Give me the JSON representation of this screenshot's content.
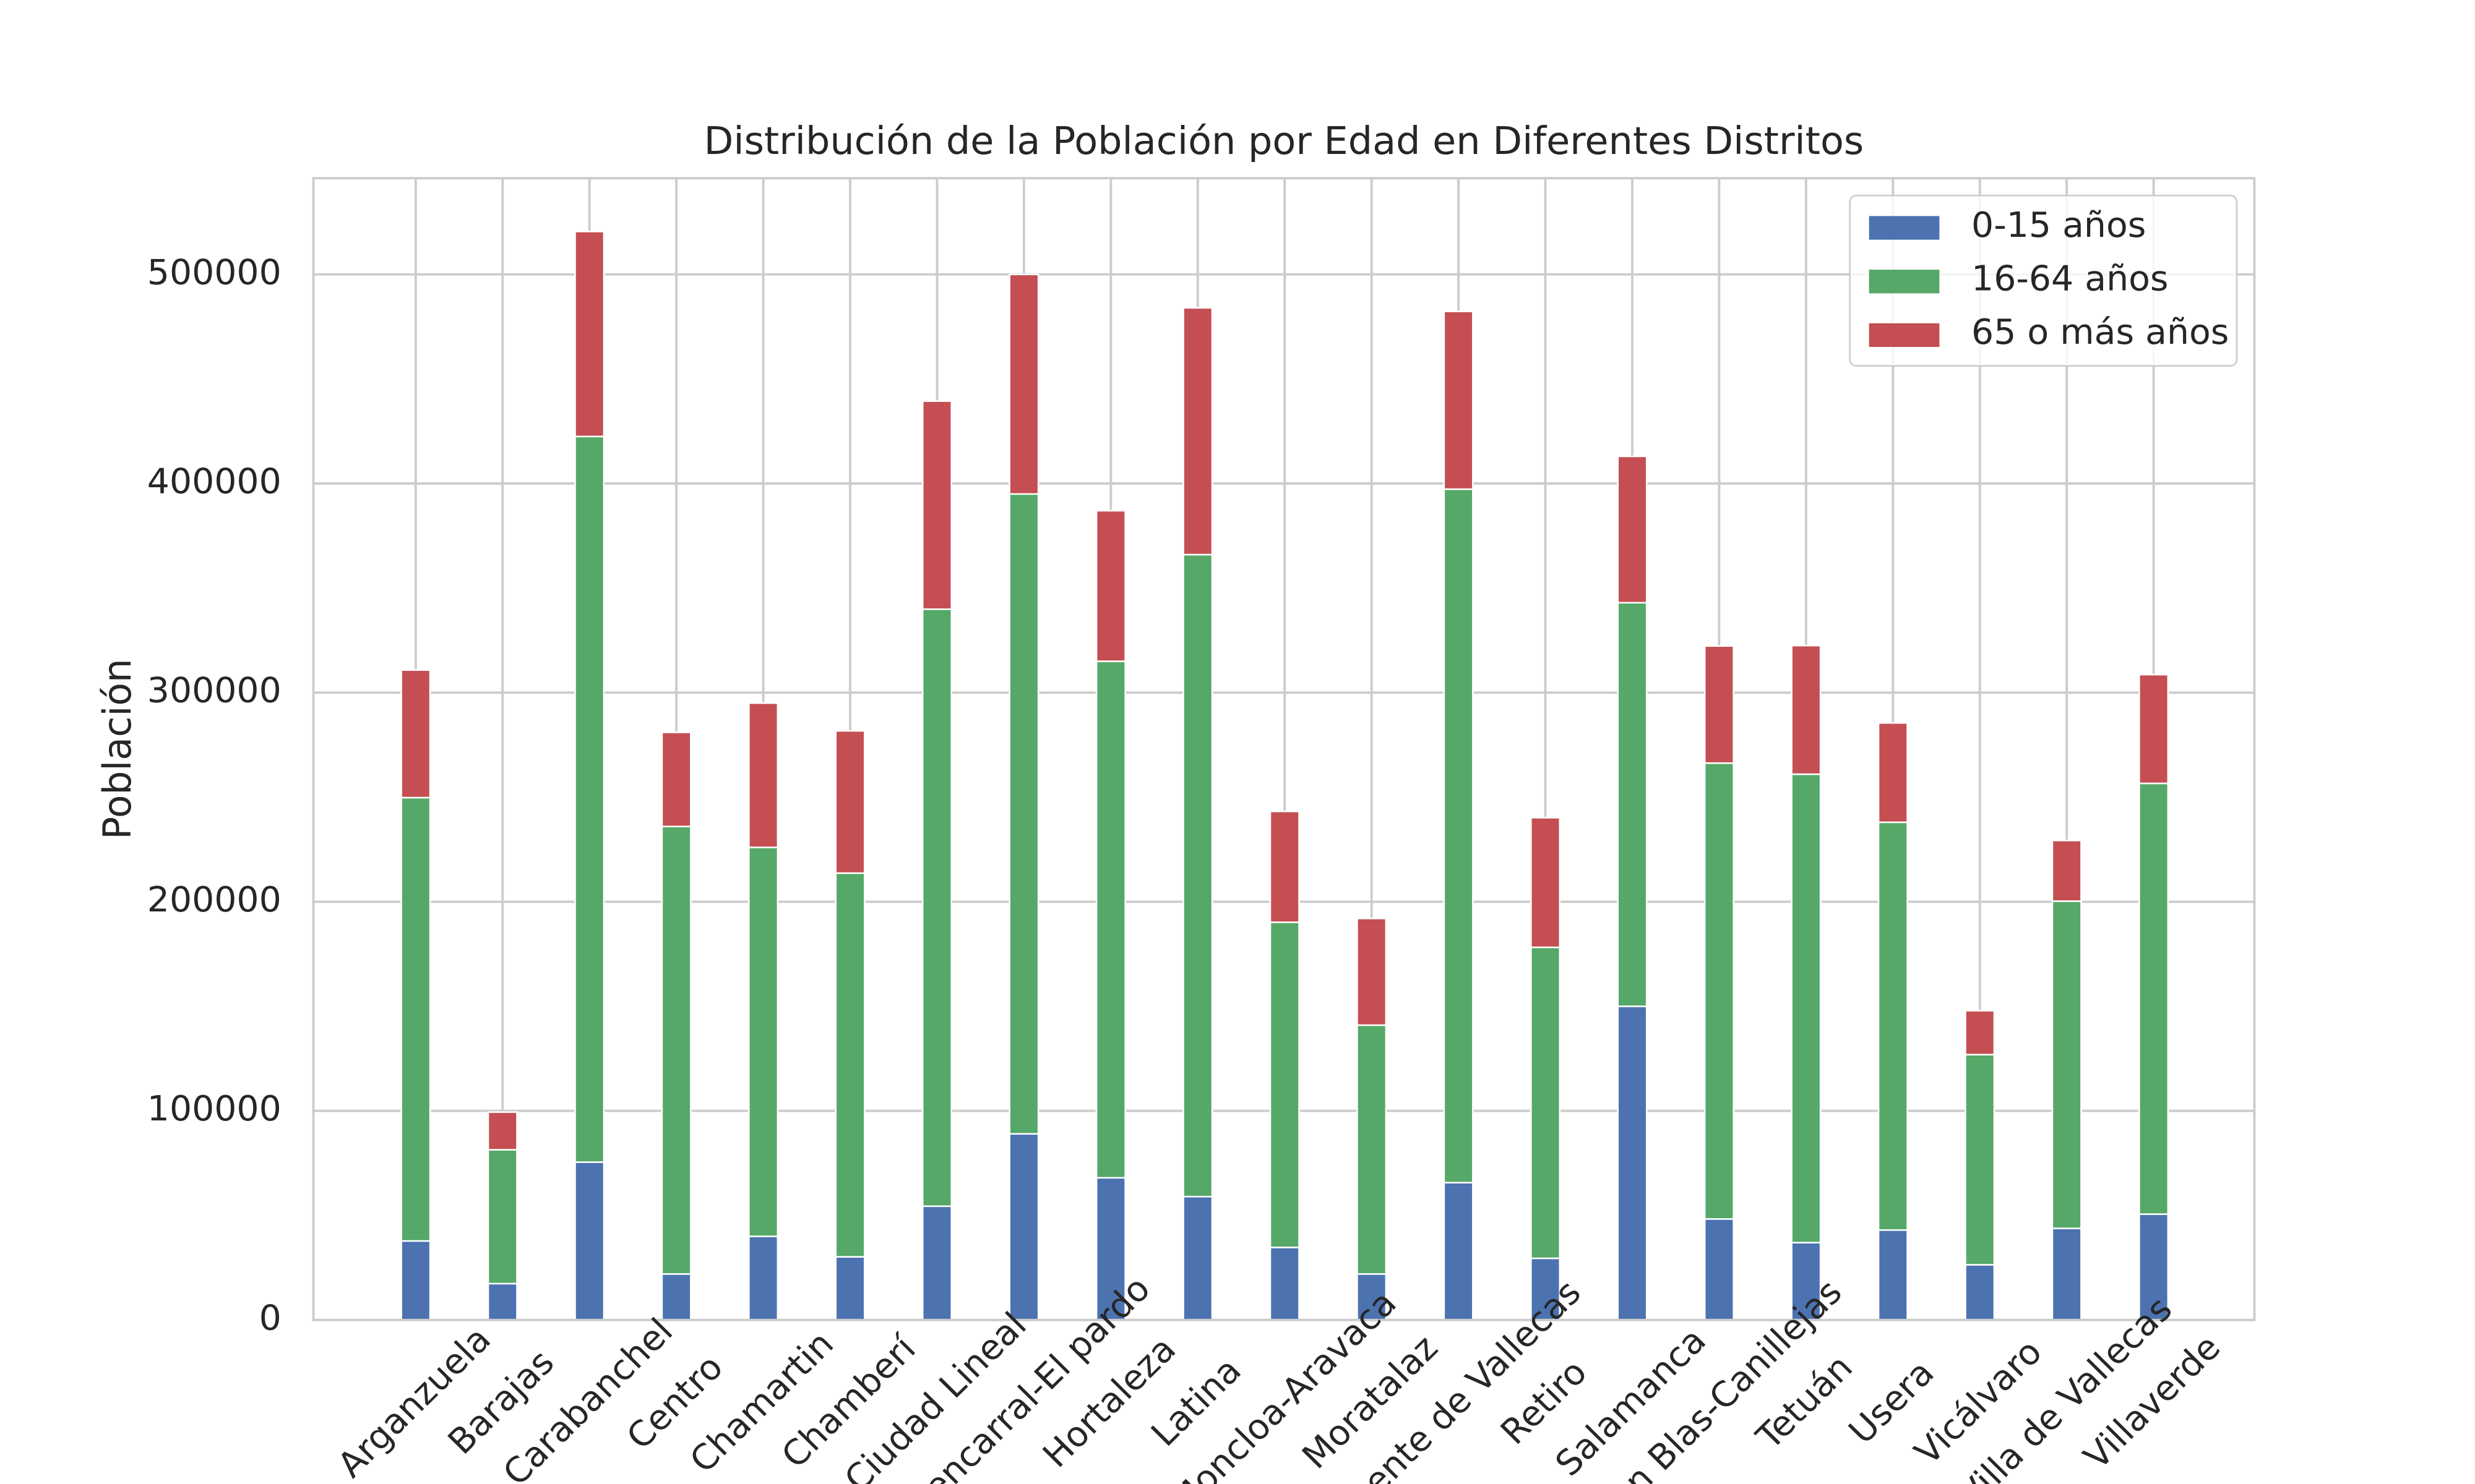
{
  "chart_data": {
    "type": "stacked-bar",
    "title": "Distribución de la Población por Edad en Diferentes Distritos",
    "y_label": "Población",
    "categories": [
      "Arganzuela",
      "Barajas",
      "Carabanchel",
      "Centro",
      "Chamartin",
      "Chamberí",
      "Ciudad Lineal",
      "Fuencarral-El pardo",
      "Hortaleza",
      "Latina",
      "Moncloa-Aravaca",
      "Moratalaz",
      "Puente de Vallecas",
      "Retiro",
      "Salamanca",
      "San Blas-Canillejas",
      "Tetuán",
      "Usera",
      "Vicálvaro",
      "Villa de Vallecas",
      "Villaverde"
    ],
    "series": [
      {
        "name": "0-15 años",
        "color": "#4c72b0",
        "values": [
          37800,
          17400,
          75500,
          22000,
          40000,
          30200,
          54400,
          89000,
          68000,
          59000,
          34700,
          22000,
          65700,
          29500,
          150000,
          48300,
          37000,
          43000,
          26400,
          43800,
          50600
        ]
      },
      {
        "name": "16-64 años",
        "color": "#55a868",
        "values": [
          212000,
          64000,
          347000,
          214000,
          186000,
          183500,
          285500,
          306000,
          247000,
          307000,
          155500,
          119000,
          331600,
          148700,
          193000,
          218000,
          224000,
          195000,
          100500,
          156500,
          206000
        ]
      },
      {
        "name": "65 o más años",
        "color": "#c44e52",
        "values": [
          61000,
          18000,
          98000,
          45000,
          69000,
          68000,
          99500,
          105000,
          72000,
          118000,
          53000,
          51000,
          85000,
          62000,
          70000,
          56000,
          61500,
          47500,
          21000,
          29000,
          52000
        ]
      }
    ],
    "ylim": [
      0,
      546000
    ],
    "yticks": [
      0,
      100000,
      200000,
      300000,
      400000,
      500000
    ],
    "grid": true,
    "legend": "upper right"
  }
}
